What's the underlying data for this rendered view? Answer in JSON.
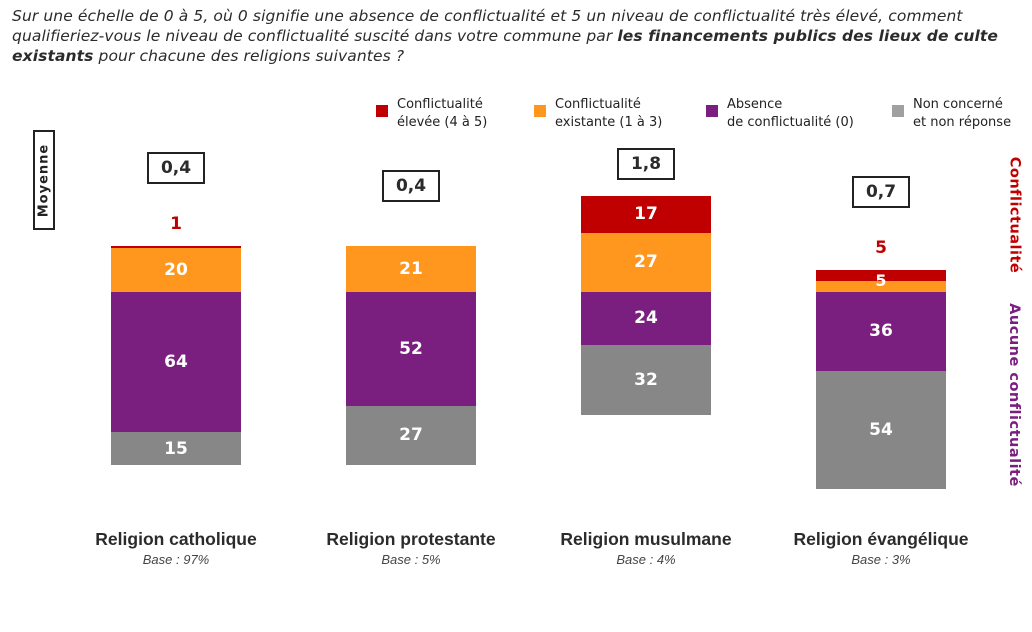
{
  "question": {
    "part1": "Sur une échelle de 0 à 5, où 0 signifie une absence de conflictualité et 5 un niveau de conflictualité très élevé, comment qualifieriez-vous le niveau de conflictualité suscité dans votre commune par ",
    "bold": "les financements publics des lieux de culte existants",
    "part2": " pour chacune des religions suivantes ?"
  },
  "labels": {
    "moyenne": "Moyenne",
    "conflictualite": "Conflictualité",
    "aucune_conflictualite": "Aucune conflictualité"
  },
  "colors": {
    "high": "#c00000",
    "existing": "#ff961e",
    "absence": "#7a1f80",
    "non_concerne": "#878787",
    "side_conflict": "#c00000",
    "side_none": "#7a1f80"
  },
  "chart_data": {
    "type": "bar",
    "stacked": true,
    "title": "Sur une échelle de 0 à 5, où 0 signifie une absence de conflictualité et 5 un niveau de conflictualité très élevé, comment qualifieriez-vous le niveau de conflictualité suscité dans votre commune par les financements publics des lieux de culte existants pour chacune des religions suivantes ?",
    "unit": "%",
    "legend_position": "top-right",
    "categories": [
      "Religion catholique",
      "Religion protestante",
      "Religion musulmane",
      "Religion évangélique"
    ],
    "bases": [
      "Base : 97%",
      "Base : 5%",
      "Base : 4%",
      "Base : 3%"
    ],
    "averages": [
      "0,4",
      "0,4",
      "1,8",
      "0,7"
    ],
    "series": [
      {
        "key": "high",
        "name": "Conflictualité\nélevée (4 à 5)",
        "values": [
          1,
          0,
          17,
          5
        ]
      },
      {
        "key": "existing",
        "name": "Conflictualité\nexistante (1 à 3)",
        "values": [
          20,
          21,
          27,
          5
        ]
      },
      {
        "key": "absence",
        "name": "Absence\nde conflictualité  (0)",
        "values": [
          64,
          52,
          24,
          36
        ]
      },
      {
        "key": "non_concerne",
        "name": "Non concerné\net non réponse",
        "values": [
          15,
          27,
          32,
          54
        ]
      }
    ]
  }
}
